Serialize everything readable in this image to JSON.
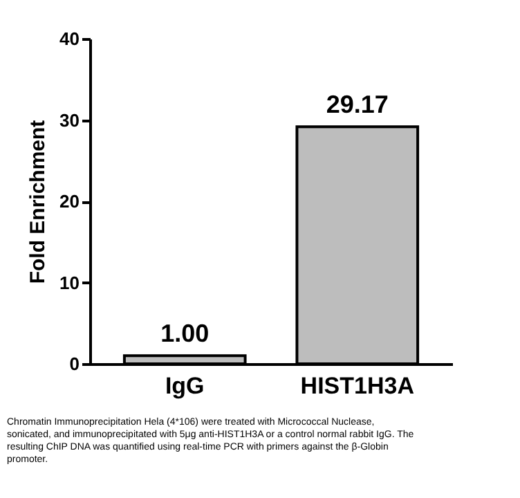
{
  "chart_data": {
    "type": "bar",
    "ylabel": "Fold Enrichment",
    "categories": [
      "IgG",
      "HIST1H3A"
    ],
    "values": [
      1.0,
      29.17
    ],
    "value_labels": [
      "1.00",
      "29.17"
    ],
    "color": "#bdbdbd",
    "ylim": [
      0,
      40
    ],
    "yticks": [
      0,
      10,
      20,
      30,
      40
    ],
    "grid": false,
    "annotations": [
      "Chromatin Immunoprecipitation Hela (4*106) were treated with Micrococcal Nuclease, sonicated, and immunoprecipitated with 5μg anti-HIST1H3A or a control normal rabbit IgG. The resulting ChIP DNA was quantified using real-time PCR with primers against the β-Globin promoter."
    ]
  }
}
